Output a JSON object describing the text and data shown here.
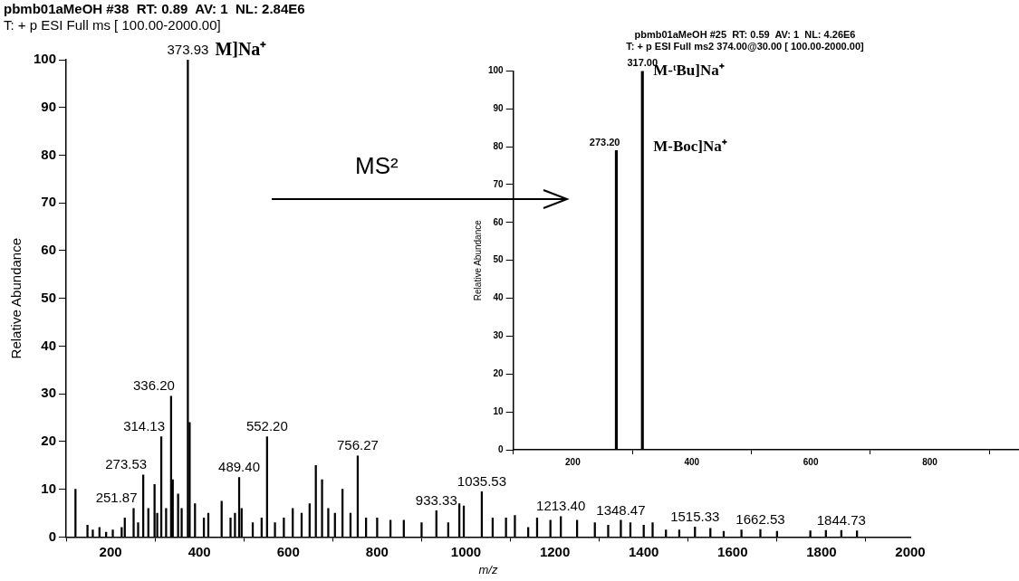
{
  "chart_data": [
    {
      "type": "bar",
      "title": "pbmb01aMeOH #38  RT: 0.89  AV: 1  NL: 2.84E6",
      "subtitle": "T: + p ESI Full ms [ 100.00-2000.00]",
      "xlabel": "m/z",
      "ylabel": "Relative Abundance",
      "color": "#000000",
      "x": [
        121,
        148,
        160,
        175,
        190,
        205,
        225,
        232,
        251.87,
        262,
        273.53,
        285,
        299,
        305,
        314.13,
        325,
        336.2,
        340,
        352,
        360,
        373.93,
        378,
        390,
        410,
        420,
        450,
        470,
        480,
        489.4,
        495,
        520,
        540,
        552.2,
        570,
        590,
        610,
        630,
        648,
        662,
        676,
        690,
        705,
        722,
        740,
        756.27,
        775,
        800,
        830,
        860,
        900,
        933.33,
        960,
        985,
        995,
        1035.53,
        1060,
        1090,
        1110,
        1140,
        1160,
        1190,
        1213.4,
        1250,
        1290,
        1320,
        1348.47,
        1370,
        1400,
        1420,
        1450,
        1480,
        1515.33,
        1550,
        1580,
        1620,
        1662.53,
        1700,
        1775,
        1810,
        1844.73,
        1880
      ],
      "values": [
        10,
        2.5,
        1.5,
        2,
        1,
        1.5,
        2,
        4,
        6,
        3,
        13,
        6,
        11,
        5,
        21,
        6,
        29.5,
        12,
        9,
        6,
        100,
        24,
        7,
        4,
        5,
        7.5,
        4,
        5,
        12.5,
        6,
        3,
        4,
        21,
        3,
        4,
        6,
        5,
        7,
        15,
        12,
        6,
        5,
        10,
        5,
        17,
        4,
        4,
        3.5,
        3.5,
        3,
        5.5,
        3,
        7,
        6.5,
        9.5,
        4,
        4,
        4.5,
        2,
        4,
        3.5,
        4.3,
        3.5,
        3,
        2.5,
        3.5,
        3,
        2.5,
        3,
        1.5,
        1.5,
        2.1,
        1.8,
        1.2,
        1.5,
        1.6,
        1.2,
        1.3,
        1.4,
        1.4,
        1.3
      ],
      "xlim": [
        100,
        2000
      ],
      "xticks": [
        200,
        400,
        600,
        800,
        1000,
        1200,
        1400,
        1600,
        1800,
        2000
      ],
      "ylim": [
        0,
        100
      ],
      "yticks": [
        0,
        10,
        20,
        30,
        40,
        50,
        60,
        70,
        80,
        90,
        100
      ],
      "annotations": [
        {
          "text": "251.87",
          "x": 251.87,
          "y": 6
        },
        {
          "text": "273.53",
          "x": 273.53,
          "y": 13
        },
        {
          "text": "314.13",
          "x": 314.13,
          "y": 21
        },
        {
          "text": "336.20",
          "x": 336.2,
          "y": 29.5
        },
        {
          "text": "373.93",
          "x": 373.93,
          "y": 100
        },
        {
          "text": "M]Na⁺",
          "x": 373.93,
          "y": 100
        },
        {
          "text": "489.40",
          "x": 489.4,
          "y": 12.5
        },
        {
          "text": "552.20",
          "x": 552.2,
          "y": 21
        },
        {
          "text": "756.27",
          "x": 756.27,
          "y": 17
        },
        {
          "text": "933.33",
          "x": 933.33,
          "y": 5.5
        },
        {
          "text": "1035.53",
          "x": 1035.53,
          "y": 9.5
        },
        {
          "text": "1213.40",
          "x": 1213.4,
          "y": 4.3
        },
        {
          "text": "1348.47",
          "x": 1348.47,
          "y": 3.5
        },
        {
          "text": "1515.33",
          "x": 1515.33,
          "y": 2.1
        },
        {
          "text": "1662.53",
          "x": 1662.53,
          "y": 1.6
        },
        {
          "text": "1844.73",
          "x": 1844.73,
          "y": 1.4
        },
        "MS²"
      ]
    },
    {
      "type": "bar",
      "title": "pbmb01aMeOH #25  RT: 0.59  AV: 1  NL: 4.26E6",
      "subtitle": "T: + p ESI Full ms2 374.00@30.00 [ 100.00-2000.00]",
      "ylabel": "Relative Abundance",
      "color": "#000000",
      "x": [
        273.2,
        317
      ],
      "values": [
        79,
        100
      ],
      "xlim": [
        100,
        950
      ],
      "xticks": [
        200,
        400,
        600,
        800
      ],
      "ylim": [
        0,
        100
      ],
      "yticks": [
        0,
        10,
        20,
        30,
        40,
        50,
        60,
        70,
        80,
        90,
        100
      ],
      "annotations": [
        {
          "text": "273.20",
          "x": 273.2,
          "y": 79
        },
        {
          "text": "317.00",
          "x": 317,
          "y": 100
        },
        {
          "text": "M-ᵗBu]Na⁺",
          "x": 317,
          "y": 100
        },
        {
          "text": "M-Boc]Na⁺",
          "x": 317,
          "y": 80
        }
      ]
    }
  ]
}
